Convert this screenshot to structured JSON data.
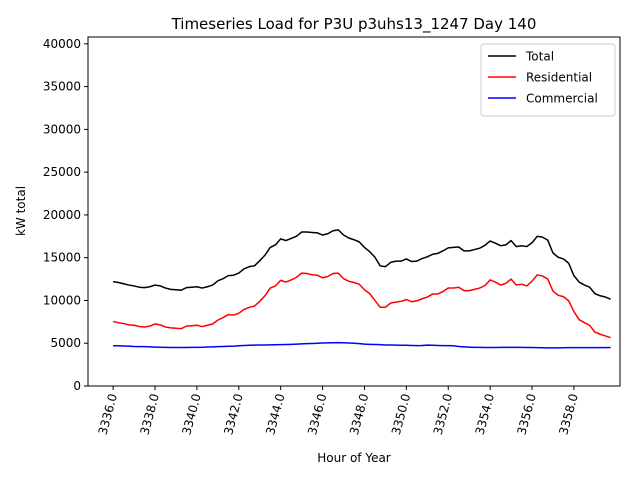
{
  "chart_data": {
    "type": "line",
    "title": "Timeseries Load for P3U p3uhs13_1247  Day 140",
    "xlabel": "Hour of Year",
    "ylabel": "kW total",
    "xlim": [
      3334.8,
      3360.2
    ],
    "ylim": [
      0,
      40800
    ],
    "x_ticks": [
      3336,
      3338,
      3340,
      3342,
      3344,
      3346,
      3348,
      3350,
      3352,
      3354,
      3356,
      3358
    ],
    "x_tick_labels": [
      "3336.0",
      "3338.0",
      "3340.0",
      "3342.0",
      "3344.0",
      "3346.0",
      "3348.0",
      "3350.0",
      "3352.0",
      "3354.0",
      "3356.0",
      "3358.0"
    ],
    "y_ticks": [
      0,
      5000,
      10000,
      15000,
      20000,
      25000,
      30000,
      35000,
      40000
    ],
    "y_tick_labels": [
      "0",
      "5000",
      "10000",
      "15000",
      "20000",
      "25000",
      "30000",
      "35000",
      "40000"
    ],
    "legend_position": "top-right",
    "x": [
      3336.0,
      3336.25,
      3336.5,
      3336.75,
      3337.0,
      3337.25,
      3337.5,
      3337.75,
      3338.0,
      3338.25,
      3338.5,
      3338.75,
      3339.0,
      3339.25,
      3339.5,
      3339.75,
      3340.0,
      3340.25,
      3340.5,
      3340.75,
      3341.0,
      3341.25,
      3341.5,
      3341.75,
      3342.0,
      3342.25,
      3342.5,
      3342.75,
      3343.0,
      3343.25,
      3343.5,
      3343.75,
      3344.0,
      3344.25,
      3344.5,
      3344.75,
      3345.0,
      3345.25,
      3345.5,
      3345.75,
      3346.0,
      3346.25,
      3346.5,
      3346.75,
      3347.0,
      3347.25,
      3347.5,
      3347.75,
      3348.0,
      3348.25,
      3348.5,
      3348.75,
      3349.0,
      3349.25,
      3349.5,
      3349.75,
      3350.0,
      3350.25,
      3350.5,
      3350.75,
      3351.0,
      3351.25,
      3351.5,
      3351.75,
      3352.0,
      3352.25,
      3352.5,
      3352.75,
      3353.0,
      3353.25,
      3353.5,
      3353.75,
      3354.0,
      3354.25,
      3354.5,
      3354.75,
      3355.0,
      3355.25,
      3355.5,
      3355.75,
      3356.0,
      3356.25,
      3356.5,
      3356.75,
      3357.0,
      3357.25,
      3357.5,
      3357.75,
      3358.0,
      3358.25,
      3358.5,
      3358.75,
      3359.0,
      3359.25,
      3359.5,
      3359.75
    ],
    "series": [
      {
        "name": "Total",
        "color": "#000000",
        "values": [
          12200,
          12100,
          11950,
          11800,
          11700,
          11550,
          11500,
          11600,
          11800,
          11700,
          11450,
          11300,
          11250,
          11200,
          11500,
          11550,
          11600,
          11450,
          11600,
          11800,
          12300,
          12550,
          12900,
          12950,
          13200,
          13700,
          13950,
          14050,
          14650,
          15300,
          16200,
          16500,
          17200,
          17000,
          17250,
          17500,
          18000,
          18000,
          17950,
          17900,
          17650,
          17800,
          18150,
          18250,
          17650,
          17300,
          17100,
          16850,
          16200,
          15700,
          15050,
          14050,
          13950,
          14450,
          14600,
          14600,
          14850,
          14550,
          14600,
          14900,
          15100,
          15400,
          15500,
          15800,
          16150,
          16200,
          16250,
          15800,
          15800,
          15950,
          16100,
          16450,
          16950,
          16700,
          16400,
          16500,
          17000,
          16300,
          16400,
          16300,
          16750,
          17500,
          17400,
          17050,
          15550,
          15050,
          14850,
          14350,
          12900,
          12150,
          11800,
          11550,
          10800,
          10550,
          10400,
          10150
        ]
      },
      {
        "name": "Residential",
        "color": "#ff0000",
        "values": [
          7550,
          7400,
          7300,
          7150,
          7100,
          6950,
          6900,
          7000,
          7250,
          7150,
          6900,
          6800,
          6750,
          6700,
          7000,
          7050,
          7100,
          6950,
          7100,
          7250,
          7700,
          8000,
          8350,
          8300,
          8500,
          8950,
          9200,
          9350,
          9900,
          10550,
          11450,
          11700,
          12350,
          12150,
          12400,
          12700,
          13200,
          13150,
          13000,
          12950,
          12650,
          12800,
          13150,
          13200,
          12550,
          12250,
          12100,
          11900,
          11250,
          10800,
          10000,
          9200,
          9200,
          9700,
          9800,
          9900,
          10100,
          9850,
          9950,
          10200,
          10400,
          10750,
          10750,
          11050,
          11450,
          11450,
          11550,
          11150,
          11150,
          11300,
          11450,
          11750,
          12400,
          12150,
          11800,
          12000,
          12500,
          11800,
          11900,
          11700,
          12250,
          13000,
          12850,
          12500,
          11100,
          10600,
          10450,
          9950,
          8700,
          7750,
          7400,
          7100,
          6300,
          6050,
          5850,
          5650
        ]
      },
      {
        "name": "Commercial",
        "color": "#0000ff",
        "values": [
          4700,
          4700,
          4680,
          4660,
          4620,
          4600,
          4600,
          4580,
          4550,
          4530,
          4510,
          4500,
          4500,
          4500,
          4500,
          4510,
          4520,
          4530,
          4560,
          4580,
          4600,
          4620,
          4640,
          4660,
          4700,
          4730,
          4760,
          4780,
          4790,
          4800,
          4810,
          4820,
          4840,
          4850,
          4870,
          4900,
          4920,
          4950,
          4970,
          5000,
          5020,
          5040,
          5060,
          5070,
          5050,
          5030,
          5000,
          4960,
          4900,
          4870,
          4850,
          4830,
          4800,
          4800,
          4780,
          4760,
          4760,
          4740,
          4720,
          4740,
          4780,
          4760,
          4740,
          4720,
          4720,
          4700,
          4620,
          4580,
          4550,
          4520,
          4510,
          4500,
          4500,
          4500,
          4510,
          4520,
          4520,
          4520,
          4510,
          4500,
          4500,
          4480,
          4470,
          4460,
          4460,
          4460,
          4470,
          4480,
          4480,
          4480,
          4480,
          4490,
          4490,
          4490,
          4490,
          4500
        ]
      }
    ]
  }
}
